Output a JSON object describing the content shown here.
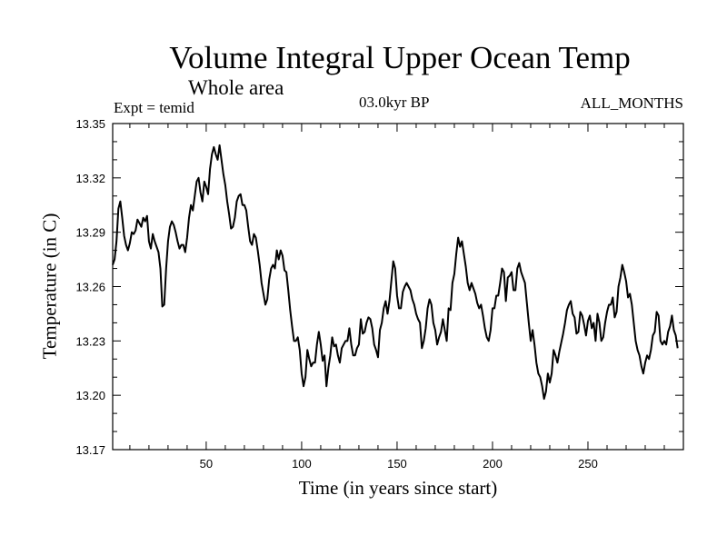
{
  "chart_data": {
    "type": "line",
    "title": "Volume Integral Upper Ocean Temp",
    "subtitle": "Whole area",
    "annotations": {
      "experiment": "Expt = temid",
      "period": "03.0kyr BP",
      "months": "ALL_MONTHS"
    },
    "xlabel": "Time (in years since start)",
    "ylabel": "Temperature (in C)",
    "xlim": [
      1,
      300
    ],
    "ylim": [
      13.17,
      13.35
    ],
    "xticks": [
      50,
      100,
      150,
      200,
      250
    ],
    "xtick_labels": [
      "50",
      "100",
      "150",
      "200",
      "250"
    ],
    "yticks": [
      13.17,
      13.2,
      13.23,
      13.26,
      13.29,
      13.32,
      13.35
    ],
    "ytick_labels": [
      "13.17",
      "13.20",
      "13.23",
      "13.26",
      "13.29",
      "13.32",
      "13.35"
    ],
    "series": [
      {
        "name": "Volume integral upper ocean temperature",
        "color": "#000000",
        "points": [
          [
            1,
            13.272
          ],
          [
            2,
            13.275
          ],
          [
            3,
            13.285
          ],
          [
            4,
            13.303
          ],
          [
            5,
            13.307
          ],
          [
            6,
            13.298
          ],
          [
            7,
            13.288
          ],
          [
            8,
            13.283
          ],
          [
            9,
            13.28
          ],
          [
            10,
            13.284
          ],
          [
            11,
            13.29
          ],
          [
            12,
            13.289
          ],
          [
            13,
            13.291
          ],
          [
            14,
            13.297
          ],
          [
            15,
            13.295
          ],
          [
            16,
            13.293
          ],
          [
            17,
            13.298
          ],
          [
            18,
            13.296
          ],
          [
            19,
            13.299
          ],
          [
            20,
            13.285
          ],
          [
            21,
            13.281
          ],
          [
            22,
            13.289
          ],
          [
            23,
            13.285
          ],
          [
            24,
            13.282
          ],
          [
            25,
            13.279
          ],
          [
            26,
            13.27
          ],
          [
            27,
            13.249
          ],
          [
            28,
            13.25
          ],
          [
            29,
            13.27
          ],
          [
            30,
            13.285
          ],
          [
            31,
            13.293
          ],
          [
            32,
            13.296
          ],
          [
            33,
            13.294
          ],
          [
            34,
            13.29
          ],
          [
            35,
            13.285
          ],
          [
            36,
            13.281
          ],
          [
            37,
            13.283
          ],
          [
            38,
            13.283
          ],
          [
            39,
            13.279
          ],
          [
            40,
            13.287
          ],
          [
            41,
            13.298
          ],
          [
            42,
            13.305
          ],
          [
            43,
            13.302
          ],
          [
            44,
            13.31
          ],
          [
            45,
            13.318
          ],
          [
            46,
            13.32
          ],
          [
            47,
            13.312
          ],
          [
            48,
            13.307
          ],
          [
            49,
            13.318
          ],
          [
            50,
            13.315
          ],
          [
            51,
            13.311
          ],
          [
            52,
            13.325
          ],
          [
            53,
            13.333
          ],
          [
            54,
            13.337
          ],
          [
            55,
            13.333
          ],
          [
            56,
            13.33
          ],
          [
            57,
            13.338
          ],
          [
            58,
            13.33
          ],
          [
            59,
            13.322
          ],
          [
            60,
            13.316
          ],
          [
            61,
            13.307
          ],
          [
            62,
            13.3
          ],
          [
            63,
            13.292
          ],
          [
            64,
            13.293
          ],
          [
            65,
            13.298
          ],
          [
            66,
            13.307
          ],
          [
            67,
            13.31
          ],
          [
            68,
            13.311
          ],
          [
            69,
            13.305
          ],
          [
            70,
            13.305
          ],
          [
            71,
            13.302
          ],
          [
            72,
            13.293
          ],
          [
            73,
            13.285
          ],
          [
            74,
            13.283
          ],
          [
            75,
            13.289
          ],
          [
            76,
            13.287
          ],
          [
            77,
            13.28
          ],
          [
            78,
            13.272
          ],
          [
            79,
            13.262
          ],
          [
            80,
            13.256
          ],
          [
            81,
            13.25
          ],
          [
            82,
            13.253
          ],
          [
            83,
            13.264
          ],
          [
            84,
            13.27
          ],
          [
            85,
            13.272
          ],
          [
            86,
            13.27
          ],
          [
            87,
            13.28
          ],
          [
            88,
            13.275
          ],
          [
            89,
            13.28
          ],
          [
            90,
            13.277
          ],
          [
            91,
            13.269
          ],
          [
            92,
            13.268
          ],
          [
            93,
            13.258
          ],
          [
            94,
            13.247
          ],
          [
            95,
            13.238
          ],
          [
            96,
            13.23
          ],
          [
            97,
            13.23
          ],
          [
            98,
            13.232
          ],
          [
            99,
            13.225
          ],
          [
            100,
            13.212
          ],
          [
            101,
            13.205
          ],
          [
            102,
            13.21
          ],
          [
            103,
            13.225
          ],
          [
            104,
            13.22
          ],
          [
            105,
            13.216
          ],
          [
            106,
            13.218
          ],
          [
            107,
            13.218
          ],
          [
            108,
            13.228
          ],
          [
            109,
            13.235
          ],
          [
            110,
            13.228
          ],
          [
            111,
            13.219
          ],
          [
            112,
            13.222
          ],
          [
            113,
            13.205
          ],
          [
            114,
            13.215
          ],
          [
            115,
            13.222
          ],
          [
            116,
            13.232
          ],
          [
            117,
            13.227
          ],
          [
            118,
            13.228
          ],
          [
            119,
            13.222
          ],
          [
            120,
            13.218
          ],
          [
            121,
            13.226
          ],
          [
            122,
            13.228
          ],
          [
            123,
            13.23
          ],
          [
            124,
            13.23
          ],
          [
            125,
            13.237
          ],
          [
            126,
            13.228
          ],
          [
            127,
            13.222
          ],
          [
            128,
            13.222
          ],
          [
            129,
            13.226
          ],
          [
            130,
            13.228
          ],
          [
            131,
            13.242
          ],
          [
            132,
            13.234
          ],
          [
            133,
            13.235
          ],
          [
            134,
            13.24
          ],
          [
            135,
            13.243
          ],
          [
            136,
            13.242
          ],
          [
            137,
            13.237
          ],
          [
            138,
            13.228
          ],
          [
            139,
            13.225
          ],
          [
            140,
            13.221
          ],
          [
            141,
            13.236
          ],
          [
            142,
            13.24
          ],
          [
            143,
            13.248
          ],
          [
            144,
            13.252
          ],
          [
            145,
            13.245
          ],
          [
            146,
            13.252
          ],
          [
            147,
            13.263
          ],
          [
            148,
            13.274
          ],
          [
            149,
            13.27
          ],
          [
            150,
            13.255
          ],
          [
            151,
            13.248
          ],
          [
            152,
            13.248
          ],
          [
            153,
            13.257
          ],
          [
            154,
            13.26
          ],
          [
            155,
            13.262
          ],
          [
            156,
            13.26
          ],
          [
            157,
            13.258
          ],
          [
            158,
            13.253
          ],
          [
            159,
            13.25
          ],
          [
            160,
            13.245
          ],
          [
            161,
            13.242
          ],
          [
            162,
            13.24
          ],
          [
            163,
            13.226
          ],
          [
            164,
            13.23
          ],
          [
            165,
            13.237
          ],
          [
            166,
            13.248
          ],
          [
            167,
            13.253
          ],
          [
            168,
            13.25
          ],
          [
            169,
            13.24
          ],
          [
            170,
            13.236
          ],
          [
            171,
            13.228
          ],
          [
            172,
            13.232
          ],
          [
            173,
            13.235
          ],
          [
            174,
            13.242
          ],
          [
            175,
            13.236
          ],
          [
            176,
            13.23
          ],
          [
            177,
            13.248
          ],
          [
            178,
            13.247
          ],
          [
            179,
            13.262
          ],
          [
            180,
            13.267
          ],
          [
            181,
            13.278
          ],
          [
            182,
            13.287
          ],
          [
            183,
            13.282
          ],
          [
            184,
            13.285
          ],
          [
            185,
            13.278
          ],
          [
            186,
            13.271
          ],
          [
            187,
            13.262
          ],
          [
            188,
            13.258
          ],
          [
            189,
            13.262
          ],
          [
            190,
            13.259
          ],
          [
            191,
            13.256
          ],
          [
            192,
            13.251
          ],
          [
            193,
            13.248
          ],
          [
            194,
            13.25
          ],
          [
            195,
            13.244
          ],
          [
            196,
            13.237
          ],
          [
            197,
            13.232
          ],
          [
            198,
            13.23
          ],
          [
            199,
            13.236
          ],
          [
            200,
            13.248
          ],
          [
            201,
            13.248
          ],
          [
            202,
            13.255
          ],
          [
            203,
            13.255
          ],
          [
            204,
            13.262
          ],
          [
            205,
            13.27
          ],
          [
            206,
            13.268
          ],
          [
            207,
            13.252
          ],
          [
            208,
            13.265
          ],
          [
            209,
            13.266
          ],
          [
            210,
            13.268
          ],
          [
            211,
            13.258
          ],
          [
            212,
            13.258
          ],
          [
            213,
            13.27
          ],
          [
            214,
            13.273
          ],
          [
            215,
            13.268
          ],
          [
            216,
            13.265
          ],
          [
            217,
            13.262
          ],
          [
            218,
            13.251
          ],
          [
            219,
            13.24
          ],
          [
            220,
            13.23
          ],
          [
            221,
            13.236
          ],
          [
            222,
            13.228
          ],
          [
            223,
            13.218
          ],
          [
            224,
            13.212
          ],
          [
            225,
            13.21
          ],
          [
            226,
            13.205
          ],
          [
            227,
            13.198
          ],
          [
            228,
            13.202
          ],
          [
            229,
            13.212
          ],
          [
            230,
            13.207
          ],
          [
            231,
            13.212
          ],
          [
            232,
            13.225
          ],
          [
            233,
            13.222
          ],
          [
            234,
            13.218
          ],
          [
            235,
            13.224
          ],
          [
            236,
            13.229
          ],
          [
            237,
            13.234
          ],
          [
            238,
            13.24
          ],
          [
            239,
            13.247
          ],
          [
            240,
            13.25
          ],
          [
            241,
            13.252
          ],
          [
            242,
            13.245
          ],
          [
            243,
            13.243
          ],
          [
            244,
            13.234
          ],
          [
            245,
            13.235
          ],
          [
            246,
            13.246
          ],
          [
            247,
            13.244
          ],
          [
            248,
            13.239
          ],
          [
            249,
            13.233
          ],
          [
            250,
            13.241
          ],
          [
            251,
            13.244
          ],
          [
            252,
            13.237
          ],
          [
            253,
            13.24
          ],
          [
            254,
            13.23
          ],
          [
            255,
            13.245
          ],
          [
            256,
            13.24
          ],
          [
            257,
            13.23
          ],
          [
            258,
            13.232
          ],
          [
            259,
            13.24
          ],
          [
            260,
            13.246
          ],
          [
            261,
            13.25
          ],
          [
            262,
            13.25
          ],
          [
            263,
            13.254
          ],
          [
            264,
            13.243
          ],
          [
            265,
            13.246
          ],
          [
            266,
            13.26
          ],
          [
            267,
            13.265
          ],
          [
            268,
            13.272
          ],
          [
            269,
            13.268
          ],
          [
            270,
            13.263
          ],
          [
            271,
            13.254
          ],
          [
            272,
            13.256
          ],
          [
            273,
            13.25
          ],
          [
            274,
            13.24
          ],
          [
            275,
            13.23
          ],
          [
            276,
            13.225
          ],
          [
            277,
            13.222
          ],
          [
            278,
            13.216
          ],
          [
            279,
            13.212
          ],
          [
            280,
            13.218
          ],
          [
            281,
            13.222
          ],
          [
            282,
            13.22
          ],
          [
            283,
            13.225
          ],
          [
            284,
            13.233
          ],
          [
            285,
            13.235
          ],
          [
            286,
            13.246
          ],
          [
            287,
            13.244
          ],
          [
            288,
            13.23
          ],
          [
            289,
            13.228
          ],
          [
            290,
            13.23
          ],
          [
            291,
            13.228
          ],
          [
            292,
            13.235
          ],
          [
            293,
            13.238
          ],
          [
            294,
            13.244
          ],
          [
            295,
            13.236
          ],
          [
            296,
            13.233
          ],
          [
            297,
            13.226
          ]
        ]
      }
    ]
  }
}
